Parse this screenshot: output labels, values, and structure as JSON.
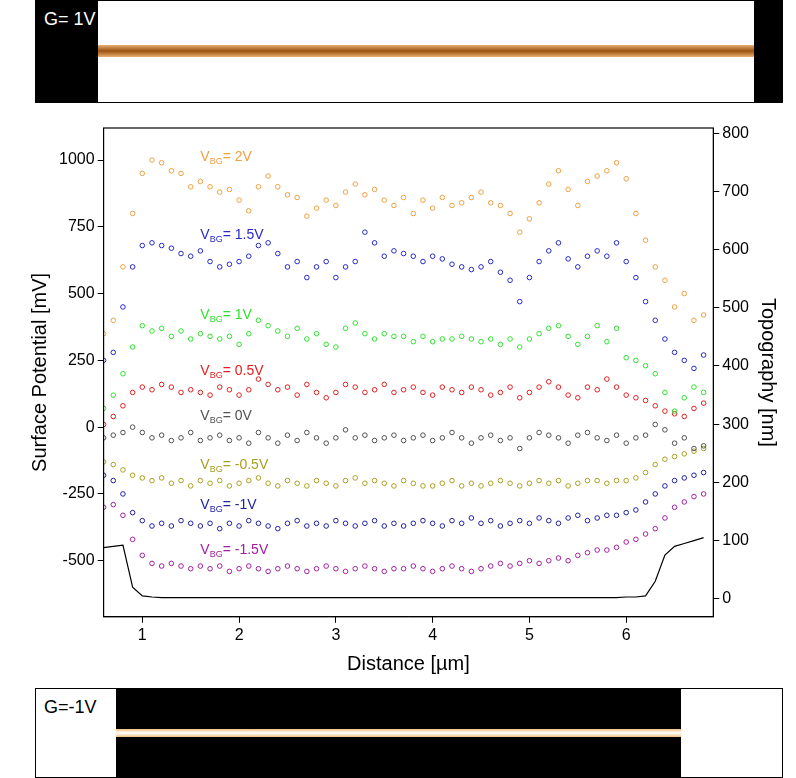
{
  "chart_data": {
    "type": "scatter",
    "x_label": "Distance [µm]",
    "y_label": "Surface Potential [mV]",
    "y2_label": "Topography [nm]",
    "xlim": [
      0.6,
      6.9
    ],
    "xticks": [
      1,
      2,
      3,
      4,
      5,
      6
    ],
    "ylim": [
      -710,
      1120
    ],
    "yticks": [
      -500,
      -250,
      0,
      250,
      500,
      750,
      1000
    ],
    "y2lim": [
      -31,
      809
    ],
    "y2ticks": [
      0,
      100,
      200,
      300,
      400,
      500,
      600,
      700,
      800
    ],
    "grid": false,
    "x": [
      0.6,
      0.7,
      0.8,
      0.9,
      1.0,
      1.1,
      1.2,
      1.3,
      1.4,
      1.5,
      1.6,
      1.7,
      1.8,
      1.9,
      2.0,
      2.1,
      2.2,
      2.3,
      2.4,
      2.5,
      2.6,
      2.7,
      2.8,
      2.9,
      3.0,
      3.1,
      3.2,
      3.3,
      3.4,
      3.5,
      3.6,
      3.7,
      3.8,
      3.9,
      4.0,
      4.1,
      4.2,
      4.3,
      4.4,
      4.5,
      4.6,
      4.7,
      4.8,
      4.9,
      5.0,
      5.1,
      5.2,
      5.3,
      5.4,
      5.5,
      5.6,
      5.7,
      5.8,
      5.9,
      6.0,
      6.1,
      6.2,
      6.3,
      6.4,
      6.5,
      6.6,
      6.7,
      6.8
    ],
    "series": [
      {
        "name": "VBG= 2V",
        "color": "#f0a040",
        "marker": "circle",
        "values": [
          350,
          400,
          600,
          800,
          950,
          1000,
          990,
          960,
          950,
          900,
          920,
          900,
          880,
          890,
          850,
          810,
          900,
          940,
          900,
          870,
          860,
          790,
          820,
          850,
          830,
          880,
          910,
          870,
          890,
          850,
          830,
          860,
          800,
          850,
          820,
          860,
          830,
          840,
          860,
          880,
          840,
          830,
          800,
          730,
          780,
          840,
          910,
          960,
          890,
          830,
          920,
          940,
          960,
          990,
          930,
          800,
          700,
          600,
          550,
          450,
          500,
          400,
          420
        ]
      },
      {
        "name": "VBG= 1.5V",
        "color": "#2828c8",
        "marker": "circle",
        "values": [
          250,
          280,
          450,
          600,
          680,
          690,
          680,
          670,
          650,
          640,
          660,
          620,
          600,
          610,
          620,
          640,
          680,
          690,
          650,
          600,
          620,
          560,
          600,
          620,
          560,
          600,
          620,
          730,
          690,
          640,
          660,
          650,
          640,
          620,
          640,
          630,
          610,
          600,
          590,
          600,
          620,
          580,
          550,
          470,
          560,
          620,
          660,
          690,
          630,
          600,
          640,
          660,
          640,
          690,
          620,
          560,
          470,
          400,
          330,
          280,
          250,
          220,
          270
        ]
      },
      {
        "name": "VBG= 1V",
        "color": "#30e030",
        "marker": "circle",
        "values": [
          70,
          120,
          200,
          300,
          380,
          360,
          370,
          340,
          360,
          330,
          350,
          340,
          330,
          340,
          310,
          350,
          400,
          380,
          360,
          340,
          370,
          330,
          350,
          310,
          300,
          370,
          390,
          350,
          330,
          350,
          340,
          340,
          320,
          340,
          320,
          330,
          330,
          340,
          330,
          320,
          330,
          310,
          330,
          300,
          330,
          350,
          370,
          380,
          340,
          310,
          340,
          380,
          320,
          370,
          260,
          250,
          230,
          200,
          130,
          60,
          110,
          150,
          130
        ]
      },
      {
        "name": "VBG= 0.5V",
        "color": "#e02020",
        "marker": "circle",
        "values": [
          10,
          40,
          80,
          130,
          150,
          140,
          160,
          150,
          130,
          140,
          130,
          120,
          150,
          140,
          120,
          140,
          180,
          160,
          140,
          150,
          120,
          160,
          130,
          110,
          130,
          160,
          150,
          130,
          140,
          160,
          130,
          140,
          150,
          130,
          120,
          150,
          140,
          130,
          150,
          140,
          120,
          130,
          150,
          110,
          130,
          150,
          170,
          150,
          120,
          110,
          150,
          140,
          180,
          150,
          120,
          110,
          100,
          80,
          60,
          50,
          40,
          70,
          90
        ]
      },
      {
        "name": "VBG= 0V",
        "color": "#505050",
        "marker": "circle",
        "values": [
          -40,
          -30,
          -20,
          0,
          -20,
          -40,
          -30,
          -50,
          -40,
          -20,
          -50,
          -40,
          -30,
          -50,
          -40,
          -60,
          -20,
          -40,
          -60,
          -30,
          -50,
          -20,
          -40,
          -60,
          -40,
          -10,
          -40,
          -30,
          -50,
          -40,
          -30,
          -50,
          -40,
          -30,
          -50,
          -40,
          -20,
          -40,
          -60,
          -40,
          -30,
          -50,
          -40,
          -80,
          -40,
          -20,
          -30,
          -40,
          -60,
          -30,
          -20,
          -40,
          -50,
          -30,
          -60,
          -40,
          -30,
          10,
          -10,
          -60,
          -40,
          -80,
          -70
        ]
      },
      {
        "name": "VBG= -0.5V",
        "color": "#a8a020",
        "marker": "circle",
        "values": [
          -130,
          -140,
          -160,
          -180,
          -190,
          -200,
          -190,
          -210,
          -200,
          -220,
          -200,
          -210,
          -200,
          -220,
          -210,
          -200,
          -190,
          -210,
          -220,
          -200,
          -210,
          -220,
          -200,
          -210,
          -220,
          -200,
          -190,
          -210,
          -200,
          -210,
          -220,
          -200,
          -210,
          -220,
          -220,
          -210,
          -200,
          -220,
          -210,
          -220,
          -210,
          -200,
          -210,
          -220,
          -210,
          -200,
          -210,
          -200,
          -220,
          -210,
          -200,
          -200,
          -210,
          -200,
          -200,
          -190,
          -170,
          -140,
          -120,
          -110,
          -100,
          -90,
          -80
        ]
      },
      {
        "name": "VBG= -1V",
        "color": "#2020a0",
        "marker": "circle",
        "values": [
          -180,
          -200,
          -250,
          -320,
          -350,
          -370,
          -360,
          -370,
          -350,
          -360,
          -370,
          -360,
          -380,
          -360,
          -370,
          -350,
          -360,
          -370,
          -380,
          -360,
          -350,
          -370,
          -360,
          -370,
          -350,
          -360,
          -370,
          -360,
          -350,
          -370,
          -360,
          -370,
          -360,
          -350,
          -360,
          -370,
          -350,
          -360,
          -340,
          -360,
          -350,
          -370,
          -360,
          -350,
          -360,
          -340,
          -350,
          -360,
          -340,
          -330,
          -350,
          -340,
          -330,
          -330,
          -320,
          -310,
          -280,
          -250,
          -220,
          -200,
          -190,
          -180,
          -170
        ]
      },
      {
        "name": "VBG= -1.5V",
        "color": "#a020a0",
        "marker": "circle",
        "values": [
          -300,
          -290,
          -330,
          -420,
          -480,
          -510,
          -520,
          -510,
          -520,
          -530,
          -520,
          -530,
          -520,
          -540,
          -530,
          -520,
          -530,
          -540,
          -530,
          -520,
          -530,
          -540,
          -530,
          -520,
          -530,
          -540,
          -530,
          -520,
          -530,
          -540,
          -530,
          -530,
          -520,
          -530,
          -540,
          -530,
          -520,
          -530,
          -540,
          -530,
          -520,
          -510,
          -520,
          -510,
          -500,
          -510,
          -500,
          -490,
          -500,
          -480,
          -470,
          -460,
          -460,
          -450,
          -430,
          -420,
          -400,
          -380,
          -340,
          -300,
          -280,
          -260,
          -250
        ]
      },
      {
        "name": "Topography",
        "color": "#000000",
        "marker": "none",
        "line_style": "solid",
        "axis": "y2",
        "values": [
          88,
          90,
          92,
          20,
          5,
          3,
          2,
          2,
          2,
          2,
          2,
          2,
          2,
          2,
          2,
          2,
          2,
          2,
          2,
          2,
          2,
          2,
          2,
          2,
          2,
          2,
          2,
          2,
          2,
          2,
          2,
          2,
          2,
          2,
          2,
          2,
          2,
          2,
          2,
          2,
          2,
          2,
          2,
          2,
          2,
          2,
          2,
          2,
          2,
          2,
          2,
          2,
          2,
          2,
          3,
          3,
          5,
          30,
          75,
          90,
          95,
          100,
          105
        ]
      }
    ]
  },
  "images": [
    {
      "label": "G= 1V"
    },
    {
      "label": "G=-1V"
    }
  ]
}
